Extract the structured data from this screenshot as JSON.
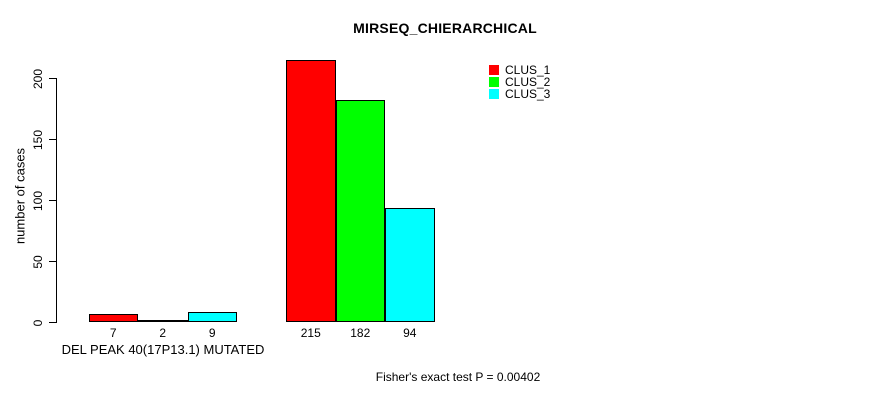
{
  "chart_data": {
    "type": "bar",
    "title": "MIRSEQ_CHIERARCHICAL",
    "ylabel": "number of cases",
    "xlabel": "",
    "ylim": [
      0,
      220
    ],
    "yticks": [
      0,
      50,
      100,
      150,
      200
    ],
    "grid": false,
    "legend_position": "top-right-inside",
    "categories": [
      "DEL PEAK 40(17P13.1) MUTATED",
      ""
    ],
    "series": [
      {
        "name": "CLUS_1",
        "color": "#ff0000",
        "values": [
          7,
          215
        ]
      },
      {
        "name": "CLUS_2",
        "color": "#00ff00",
        "values": [
          2,
          182
        ]
      },
      {
        "name": "CLUS_3",
        "color": "#00ffff",
        "values": [
          9,
          94
        ]
      }
    ],
    "bar_value_labels": [
      [
        7,
        2,
        9
      ],
      [
        215,
        182,
        94
      ]
    ],
    "footnote": "Fisher's exact test P = 0.00402"
  }
}
